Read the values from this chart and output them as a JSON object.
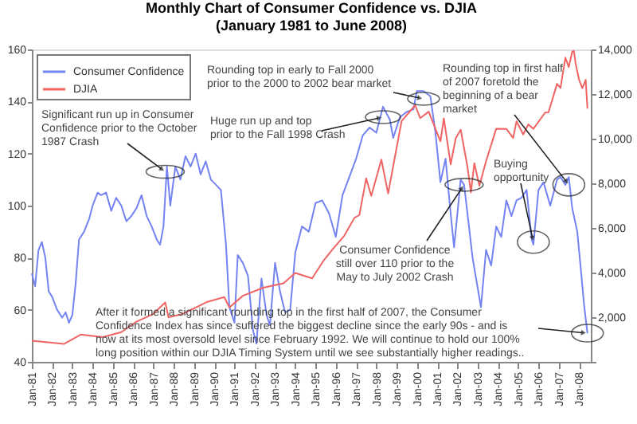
{
  "chart_data": {
    "type": "line",
    "title": "Monthly Chart of Consumer Confidence vs. DJIA",
    "subtitle": "(January 1981 to June 2008)",
    "annotations": [
      {
        "text": "Rounding top in early to Fall 2000 prior to the 2000 to 2002 bear market",
        "x": "2000-05",
        "y": 141
      },
      {
        "text": "Significant run up in Consumer Confidence prior to the October 1987 Crash",
        "x": "1987-08",
        "y": 113
      },
      {
        "text": "Huge run up and top prior to the Fall 1998 Crash",
        "x": "1998-05",
        "y": 134
      },
      {
        "text": "Rounding top in first half of 2007 foretold the beginning of a bear market",
        "x": "2007-07",
        "y": 108
      },
      {
        "text": "Buying opportunity",
        "x": "2005-10",
        "y": 86
      },
      {
        "text": "Consumer Confidence still over 110 prior to the May to July 2002 Crash",
        "x": "2002-05",
        "y": 108
      },
      {
        "text": "After it formed a significant rounding top in the first half of 2007, the Consumer Confidence Index has since suffered the biggest decline since the early 90s - and is now at its most oversold level since February 1992. We will continue to hold our 100% long position within our DJIA Timing System until we see substantially higher readings..",
        "x": "2008-06",
        "y": 51
      }
    ],
    "series": [
      {
        "name": "Consumer Confidence",
        "color": "#7383f2",
        "x": [
          "1981-01",
          "1981-03",
          "1981-05",
          "1981-07",
          "1981-09",
          "1981-11",
          "1982-01",
          "1982-04",
          "1982-07",
          "1982-09",
          "1982-11",
          "1983-01",
          "1983-03",
          "1983-05",
          "1983-08",
          "1983-11",
          "1984-01",
          "1984-04",
          "1984-06",
          "1984-09",
          "1984-12",
          "1985-03",
          "1985-06",
          "1985-09",
          "1985-12",
          "1986-03",
          "1986-06",
          "1986-09",
          "1986-12",
          "1987-03",
          "1987-05",
          "1987-07",
          "1987-09",
          "1987-11",
          "1988-02",
          "1988-05",
          "1988-08",
          "1988-11",
          "1989-02",
          "1989-05",
          "1989-08",
          "1989-11",
          "1990-02",
          "1990-05",
          "1990-08",
          "1990-10",
          "1991-01",
          "1991-03",
          "1991-06",
          "1991-09",
          "1991-12",
          "1992-02",
          "1992-05",
          "1992-08",
          "1992-10",
          "1993-01",
          "1993-04",
          "1993-07",
          "1993-10",
          "1994-01",
          "1994-05",
          "1994-09",
          "1995-01",
          "1995-05",
          "1995-09",
          "1996-01",
          "1996-05",
          "1996-09",
          "1997-01",
          "1997-05",
          "1997-09",
          "1998-01",
          "1998-05",
          "1998-09",
          "1998-11",
          "1999-03",
          "1999-07",
          "1999-11",
          "2000-01",
          "2000-05",
          "2000-09",
          "2000-12",
          "2001-03",
          "2001-06",
          "2001-09",
          "2001-11",
          "2002-01",
          "2002-03",
          "2002-05",
          "2002-07",
          "2002-10",
          "2003-03",
          "2003-06",
          "2003-09",
          "2003-12",
          "2004-03",
          "2004-06",
          "2004-09",
          "2004-12",
          "2005-03",
          "2005-06",
          "2005-09",
          "2005-10",
          "2006-01",
          "2006-04",
          "2006-08",
          "2006-12",
          "2007-02",
          "2007-05",
          "2007-07",
          "2007-09",
          "2007-12",
          "2008-02",
          "2008-04",
          "2008-06"
        ],
        "values": [
          74,
          69,
          83,
          86,
          80,
          67,
          65,
          60,
          57,
          59,
          55,
          58,
          70,
          87,
          90,
          95,
          100,
          105,
          104,
          105,
          98,
          103,
          100,
          94,
          96,
          99,
          104,
          96,
          92,
          87,
          85,
          92,
          115,
          100,
          115,
          110,
          119,
          115,
          120,
          112,
          117,
          110,
          108,
          106,
          85,
          61,
          55,
          81,
          78,
          73,
          52,
          47,
          72,
          58,
          54,
          78,
          67,
          59,
          60,
          82,
          92,
          90,
          101,
          102,
          97,
          88,
          104,
          111,
          118,
          127,
          130,
          128,
          138,
          133,
          126,
          134,
          136,
          137,
          144,
          144,
          142,
          128,
          109,
          118,
          97,
          84,
          97,
          110,
          108,
          97,
          80,
          61,
          83,
          77,
          92,
          88,
          102,
          96,
          102,
          103,
          106,
          87,
          85,
          106,
          109,
          100,
          110,
          111,
          108,
          111,
          99,
          90,
          76,
          62,
          51
        ]
      },
      {
        "name": "DJIA",
        "color": "#f06464",
        "axis": "y2",
        "x": [
          "1981-01",
          "1982-08",
          "1983-06",
          "1984-07",
          "1985-06",
          "1986-03",
          "1987-01",
          "1987-08",
          "1987-10",
          "1988-06",
          "1989-09",
          "1990-07",
          "1990-10",
          "1991-06",
          "1992-06",
          "1993-06",
          "1994-01",
          "1994-11",
          "1995-06",
          "1995-12",
          "1996-06",
          "1996-12",
          "1997-03",
          "1997-07",
          "1997-10",
          "1998-04",
          "1998-08",
          "1998-12",
          "1999-04",
          "1999-12",
          "2000-03",
          "2000-08",
          "2001-03",
          "2001-05",
          "2001-09",
          "2001-12",
          "2002-03",
          "2002-07",
          "2002-09",
          "2002-11",
          "2003-02",
          "2003-06",
          "2003-12",
          "2004-06",
          "2004-10",
          "2004-12",
          "2005-04",
          "2005-07",
          "2005-10",
          "2006-05",
          "2006-07",
          "2006-12",
          "2007-02",
          "2007-05",
          "2007-07",
          "2007-09",
          "2007-10",
          "2007-11",
          "2008-01",
          "2008-03",
          "2008-05",
          "2008-06"
        ],
        "values": [
          950,
          800,
          1220,
          1110,
          1330,
          1800,
          2150,
          2660,
          1990,
          2140,
          2690,
          2900,
          2440,
          2960,
          3320,
          3520,
          3980,
          3740,
          4560,
          5120,
          5650,
          6450,
          6580,
          8220,
          7440,
          9060,
          7540,
          9180,
          10790,
          11500,
          10920,
          11210,
          9880,
          10910,
          8850,
          10020,
          10400,
          8740,
          7590,
          8900,
          7890,
          8990,
          10450,
          10440,
          10030,
          10780,
          10190,
          10640,
          10440,
          11170,
          11180,
          12460,
          12270,
          13630,
          13210,
          13900,
          13930,
          13370,
          12650,
          12260,
          12640,
          11350
        ]
      }
    ],
    "xlim": [
      "1981-01",
      "2008-08"
    ],
    "xticks": [
      {
        "value": "1981-01",
        "label": "Jan-81"
      },
      {
        "value": "1982-01",
        "label": "Jan-82"
      },
      {
        "value": "1983-01",
        "label": "Jan-83"
      },
      {
        "value": "1984-01",
        "label": "Jan-84"
      },
      {
        "value": "1985-01",
        "label": "Jan-85"
      },
      {
        "value": "1986-01",
        "label": "Jan-86"
      },
      {
        "value": "1987-01",
        "label": "Jan-87"
      },
      {
        "value": "1988-01",
        "label": "Jan-88"
      },
      {
        "value": "1989-01",
        "label": "Jan-89"
      },
      {
        "value": "1990-01",
        "label": "Jan-90"
      },
      {
        "value": "1991-01",
        "label": "Jan-91"
      },
      {
        "value": "1992-01",
        "label": "Jan-92"
      },
      {
        "value": "1993-01",
        "label": "Jan-93"
      },
      {
        "value": "1994-01",
        "label": "Jan-94"
      },
      {
        "value": "1995-01",
        "label": "Jan-95"
      },
      {
        "value": "1996-01",
        "label": "Jan-96"
      },
      {
        "value": "1997-01",
        "label": "Jan-97"
      },
      {
        "value": "1998-01",
        "label": "Jan-98"
      },
      {
        "value": "1999-01",
        "label": "Jan-99"
      },
      {
        "value": "2000-01",
        "label": "Jan-00"
      },
      {
        "value": "2001-01",
        "label": "Jan-01"
      },
      {
        "value": "2002-01",
        "label": "Jan-02"
      },
      {
        "value": "2003-01",
        "label": "Jan-03"
      },
      {
        "value": "2004-01",
        "label": "Jan-04"
      },
      {
        "value": "2005-01",
        "label": "Jan-05"
      },
      {
        "value": "2006-01",
        "label": "Jan-06"
      },
      {
        "value": "2007-01",
        "label": "Jan-07"
      },
      {
        "value": "2008-01",
        "label": "Jan-08"
      }
    ],
    "ylim": [
      40,
      160
    ],
    "yticks": [
      40,
      60,
      80,
      100,
      120,
      140,
      160
    ],
    "y2lim": [
      0,
      14000
    ],
    "y2ticks": [
      {
        "value": 0,
        "label": null
      },
      {
        "value": 2000,
        "label": "2,000"
      },
      {
        "value": 4000,
        "label": "4,000"
      },
      {
        "value": 6000,
        "label": "6,000"
      },
      {
        "value": 8000,
        "label": "8,000"
      },
      {
        "value": 10000,
        "label": "10,000"
      },
      {
        "value": 12000,
        "label": "12,000"
      },
      {
        "value": 14000,
        "label": "14,000"
      }
    ],
    "legend": "top left",
    "grid": false
  }
}
